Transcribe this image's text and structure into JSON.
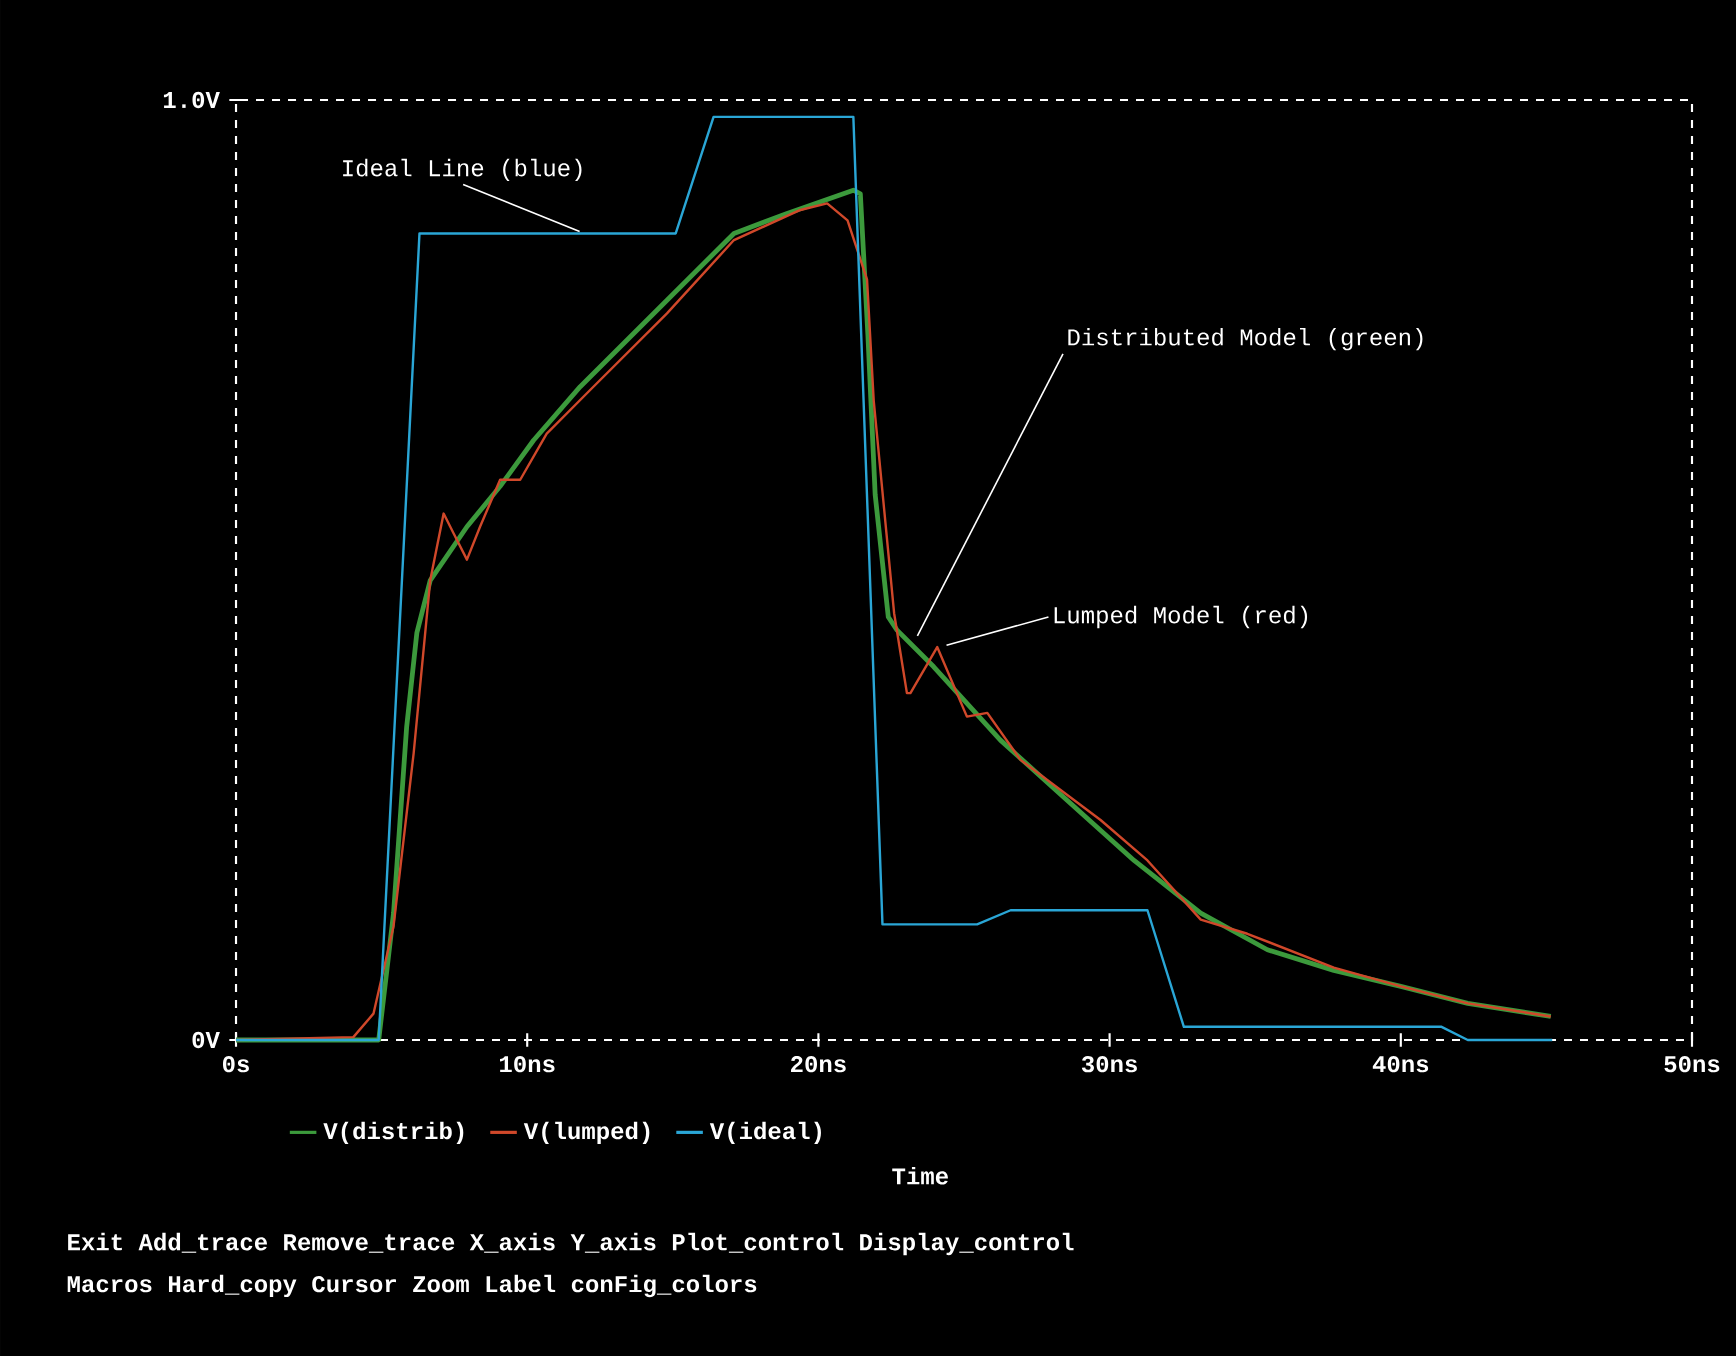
{
  "chart_data": {
    "type": "line",
    "xlabel": "Time",
    "xlim": [
      0,
      50
    ],
    "ylim": [
      0,
      1.0
    ],
    "xticks": [
      {
        "value": 0,
        "label": "0s"
      },
      {
        "value": 10,
        "label": "10ns"
      },
      {
        "value": 20,
        "label": "20ns"
      },
      {
        "value": 30,
        "label": "30ns"
      },
      {
        "value": 40,
        "label": "40ns"
      },
      {
        "value": 50,
        "label": "50ns"
      }
    ],
    "yticks": [
      {
        "value": 0,
        "label": "0V"
      },
      {
        "value": 1.0,
        "label": "1.0V"
      }
    ],
    "legend": "bottom",
    "series": [
      {
        "name": "V(distrib)",
        "color": "#3c9a3c",
        "x": [
          0,
          4.9,
          5.41,
          5.86,
          6.21,
          6.67,
          7.93,
          9.07,
          10.22,
          11.82,
          14.8,
          17.1,
          18.9,
          21.2,
          21.44,
          21.7,
          21.95,
          22.4,
          22.7,
          23.96,
          26.25,
          28.54,
          30.84,
          33.13,
          35.42,
          37.7,
          40.0,
          42.3,
          45.15
        ],
        "values": [
          0,
          0,
          0.135,
          0.333,
          0.433,
          0.489,
          0.546,
          0.589,
          0.638,
          0.695,
          0.787,
          0.858,
          0.879,
          0.904,
          0.9,
          0.75,
          0.58,
          0.45,
          0.436,
          0.397,
          0.319,
          0.255,
          0.191,
          0.135,
          0.096,
          0.074,
          0.057,
          0.039,
          0.025
        ]
      },
      {
        "name": "V(lumped)",
        "color": "#d0482a",
        "x": [
          0,
          4.03,
          4.72,
          5.41,
          6.1,
          6.67,
          7.13,
          7.47,
          7.93,
          8.38,
          9.07,
          9.76,
          10.67,
          12.05,
          14.8,
          17.1,
          19.38,
          20.3,
          21.0,
          21.67,
          21.9,
          22.6,
          23.04,
          23.16,
          24.08,
          25.1,
          25.8,
          26.94,
          29.69,
          31.3,
          33.13,
          34.73,
          37.7,
          40.0,
          42.3,
          45.15
        ],
        "values": [
          0,
          0.003,
          0.028,
          0.121,
          0.305,
          0.489,
          0.56,
          0.539,
          0.511,
          0.546,
          0.596,
          0.596,
          0.645,
          0.688,
          0.773,
          0.851,
          0.883,
          0.89,
          0.872,
          0.809,
          0.68,
          0.454,
          0.369,
          0.369,
          0.418,
          0.344,
          0.348,
          0.298,
          0.234,
          0.191,
          0.128,
          0.113,
          0.077,
          0.057,
          0.039,
          0.025
        ]
      },
      {
        "name": "V(ideal)",
        "color": "#2aa6d6",
        "x": [
          0,
          4.9,
          6.3,
          15.1,
          16.4,
          21.2,
          22.2,
          25.45,
          26.6,
          31.3,
          32.55,
          41.4,
          42.3,
          45.2
        ],
        "values": [
          0,
          0,
          0.858,
          0.858,
          0.982,
          0.982,
          0.123,
          0.123,
          0.138,
          0.138,
          0.014,
          0.014,
          0,
          0
        ]
      }
    ],
    "annotations": [
      {
        "text": "Ideal Line (blue)",
        "x": 11.8,
        "y": 0.86
      },
      {
        "text": "Distributed Model (green)",
        "x": 23.4,
        "y": 0.43
      },
      {
        "text": "Lumped Model (red)",
        "x": 24.4,
        "y": 0.42
      },
      "Exit Add_trace Remove_trace X_axis Y_axis Plot_control Display_control",
      "Macros Hard_copy Cursor Zoom Label conFig_colors"
    ]
  }
}
